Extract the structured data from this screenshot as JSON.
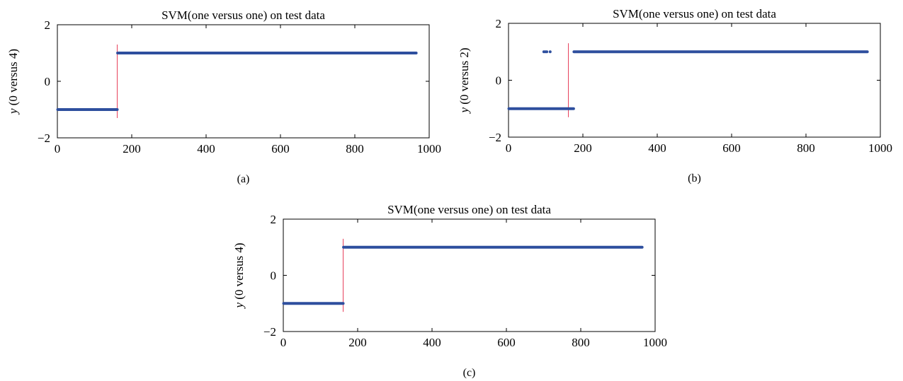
{
  "colors": {
    "series": "#2e4f9e",
    "divider": "#e8405a",
    "axis": "#000000"
  },
  "chart_data": [
    {
      "panel": "a",
      "type": "scatter",
      "title": "SVM(one versus one) on test data",
      "xlabel": "",
      "ylabel_var": "y",
      "ylabel_rest": " (0 versus 4)",
      "caption": "(a)",
      "xlim": [
        0,
        1000
      ],
      "ylim": [
        -2,
        2
      ],
      "xticks": [
        "0",
        "200",
        "400",
        "600",
        "800",
        "1000"
      ],
      "yticks": [
        "−2",
        "0",
        "2"
      ],
      "segments": [
        {
          "x_start": 1,
          "x_end": 161,
          "y": -1
        },
        {
          "x_start": 162,
          "x_end": 965,
          "y": 1
        }
      ],
      "points": [],
      "divider": {
        "x": 161,
        "y_range": [
          -1.3,
          1.3
        ]
      }
    },
    {
      "panel": "b",
      "type": "scatter",
      "title": "SVM(one versus one) on test data",
      "xlabel": "",
      "ylabel_var": "y",
      "ylabel_rest": " (0 versus 2)",
      "caption": "(b)",
      "xlim": [
        0,
        1000
      ],
      "ylim": [
        -2,
        2
      ],
      "xticks": [
        "0",
        "200",
        "400",
        "600",
        "800",
        "1000"
      ],
      "yticks": [
        "−2",
        "0",
        "2"
      ],
      "segments": [
        {
          "x_start": 1,
          "x_end": 175,
          "y": -1
        },
        {
          "x_start": 176,
          "x_end": 965,
          "y": 1
        }
      ],
      "points": [
        {
          "x": 95,
          "y": 1
        },
        {
          "x": 99,
          "y": 1
        },
        {
          "x": 103,
          "y": 1
        },
        {
          "x": 112,
          "y": 1
        }
      ],
      "divider": {
        "x": 161,
        "y_range": [
          -1.3,
          1.3
        ]
      }
    },
    {
      "panel": "c",
      "type": "scatter",
      "title": "SVM(one versus one) on test data",
      "xlabel": "",
      "ylabel_var": "y",
      "ylabel_rest": " (0 versus 4)",
      "caption": "(c)",
      "xlim": [
        0,
        1000
      ],
      "ylim": [
        -2,
        2
      ],
      "xticks": [
        "0",
        "200",
        "400",
        "600",
        "800",
        "1000"
      ],
      "yticks": [
        "−2",
        "0",
        "2"
      ],
      "segments": [
        {
          "x_start": 1,
          "x_end": 161,
          "y": -1
        },
        {
          "x_start": 162,
          "x_end": 965,
          "y": 1
        }
      ],
      "points": [],
      "divider": {
        "x": 161,
        "y_range": [
          -1.3,
          1.3
        ]
      }
    }
  ]
}
